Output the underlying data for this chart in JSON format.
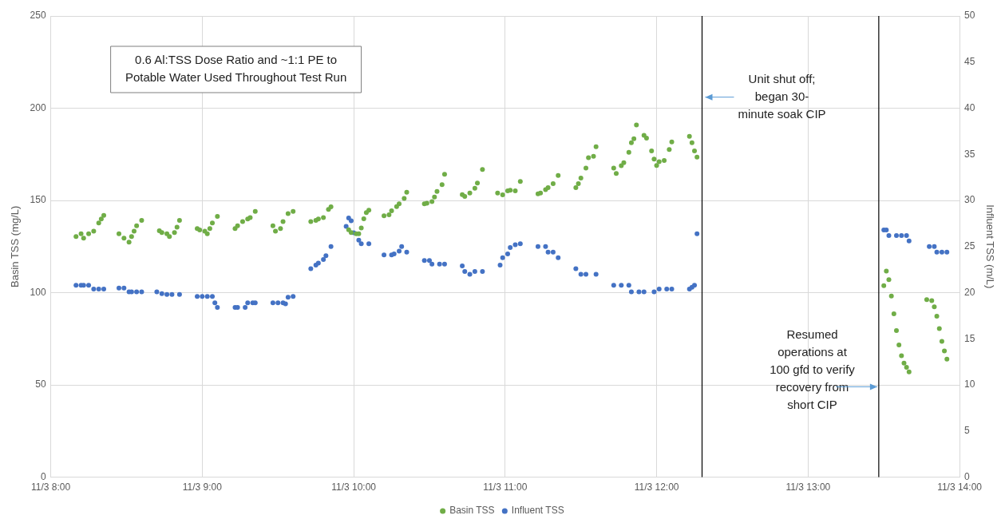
{
  "chart_data": {
    "type": "scatter",
    "ylabel": "Basin TSS (mg/L)",
    "y2label": "Influent TSS (m/L)",
    "xlim": [
      "--11-03T08:00",
      "--11-03T14:00"
    ],
    "xticks": [
      {
        "value": "--11-03T08:00",
        "label": "11/3 8:00"
      },
      {
        "value": "--11-03T09:00",
        "label": "11/3 9:00"
      },
      {
        "value": "--11-03T10:00",
        "label": "11/3 10:00"
      },
      {
        "value": "--11-03T11:00",
        "label": "11/3 11:00"
      },
      {
        "value": "--11-03T12:00",
        "label": "11/3 12:00"
      },
      {
        "value": "--11-03T13:00",
        "label": "11/3 13:00"
      },
      {
        "value": "--11-03T14:00",
        "label": "11/3 14:00"
      }
    ],
    "ylim": [
      0,
      250
    ],
    "yticks": [
      0,
      50,
      100,
      150,
      200,
      250
    ],
    "y2lim": [
      0,
      50
    ],
    "y2ticks": [
      0,
      5,
      10,
      15,
      20,
      25,
      30,
      35,
      40,
      45,
      50
    ],
    "grid": true,
    "legend": "bottom",
    "marker": "circle",
    "series": [
      {
        "name": "Basin TSS",
        "color": "#70ad47",
        "x": [
          "--11-03T08:10",
          "--11-03T08:12",
          "--11-03T08:13",
          "--11-03T08:15",
          "--11-03T08:17",
          "--11-03T08:19",
          "--11-03T08:20",
          "--11-03T08:21",
          "--11-03T08:27",
          "--11-03T08:29",
          "--11-03T08:31",
          "--11-03T08:32",
          "--11-03T08:33",
          "--11-03T08:34",
          "--11-03T08:36",
          "--11-03T08:43",
          "--11-03T08:44",
          "--11-03T08:46",
          "--11-03T08:47",
          "--11-03T08:49",
          "--11-03T08:50",
          "--11-03T08:51",
          "--11-03T08:58",
          "--11-03T08:59",
          "--11-03T09:01",
          "--11-03T09:02",
          "--11-03T09:03",
          "--11-03T09:04",
          "--11-03T09:06",
          "--11-03T09:13",
          "--11-03T09:14",
          "--11-03T09:16",
          "--11-03T09:18",
          "--11-03T09:19",
          "--11-03T09:21",
          "--11-03T09:28",
          "--11-03T09:29",
          "--11-03T09:31",
          "--11-03T09:32",
          "--11-03T09:34",
          "--11-03T09:36",
          "--11-03T09:43",
          "--11-03T09:45",
          "--11-03T09:46",
          "--11-03T09:48",
          "--11-03T09:50",
          "--11-03T09:51",
          "--11-03T09:58",
          "--11-03T09:59",
          "--11-03T10:01",
          "--11-03T10:02",
          "--11-03T10:03",
          "--11-03T10:04",
          "--11-03T10:05",
          "--11-03T10:06",
          "--11-03T10:12",
          "--11-03T10:14",
          "--11-03T10:15",
          "--11-03T10:17",
          "--11-03T10:18",
          "--11-03T10:20",
          "--11-03T10:21",
          "--11-03T10:28",
          "--11-03T10:29",
          "--11-03T10:31",
          "--11-03T10:32",
          "--11-03T10:33",
          "--11-03T10:35",
          "--11-03T10:36",
          "--11-03T10:43",
          "--11-03T10:44",
          "--11-03T10:46",
          "--11-03T10:48",
          "--11-03T10:49",
          "--11-03T10:51",
          "--11-03T10:57",
          "--11-03T10:59",
          "--11-03T11:01",
          "--11-03T11:02",
          "--11-03T11:04",
          "--11-03T11:06",
          "--11-03T11:13",
          "--11-03T11:14",
          "--11-03T11:16",
          "--11-03T11:17",
          "--11-03T11:19",
          "--11-03T11:21",
          "--11-03T11:28",
          "--11-03T11:29",
          "--11-03T11:30",
          "--11-03T11:32",
          "--11-03T11:33",
          "--11-03T11:35",
          "--11-03T11:36",
          "--11-03T11:43",
          "--11-03T11:44",
          "--11-03T11:46",
          "--11-03T11:47",
          "--11-03T11:49",
          "--11-03T11:50",
          "--11-03T11:51",
          "--11-03T11:52",
          "--11-03T11:55",
          "--11-03T11:56",
          "--11-03T11:58",
          "--11-03T11:59",
          "--11-03T12:00",
          "--11-03T12:01",
          "--11-03T12:03",
          "--11-03T12:05",
          "--11-03T12:06",
          "--11-03T12:13",
          "--11-03T12:14",
          "--11-03T12:15",
          "--11-03T12:16",
          "--11-03T13:30",
          "--11-03T13:31",
          "--11-03T13:32",
          "--11-03T13:33",
          "--11-03T13:34",
          "--11-03T13:35",
          "--11-03T13:36",
          "--11-03T13:37",
          "--11-03T13:38",
          "--11-03T13:39",
          "--11-03T13:40",
          "--11-03T13:47",
          "--11-03T13:49",
          "--11-03T13:50",
          "--11-03T13:51",
          "--11-03T13:52",
          "--11-03T13:53",
          "--11-03T13:54",
          "--11-03T13:55"
        ],
        "values": [
          130.4,
          131.9,
          129.6,
          131.9,
          133.3,
          137.8,
          140,
          141.9,
          131.9,
          129.6,
          127.4,
          130.4,
          133.3,
          136.3,
          139.2,
          133.6,
          132.6,
          131.9,
          130.4,
          132.6,
          135.5,
          139.2,
          134.8,
          134,
          133.3,
          131.9,
          134.8,
          137.8,
          141.4,
          134.8,
          136.3,
          138.5,
          140,
          140.7,
          144.1,
          136.3,
          133.3,
          134.8,
          138.5,
          142.9,
          144.1,
          138.5,
          139.2,
          140,
          140.7,
          145.1,
          146.6,
          134.1,
          132.6,
          131.9,
          131.9,
          135.1,
          140.1,
          143.4,
          144.7,
          141.7,
          142.2,
          144.4,
          146.7,
          148.2,
          151.1,
          154.5,
          148.2,
          148.5,
          149.4,
          151.9,
          154.9,
          158.6,
          164.2,
          153.2,
          152.2,
          154,
          156.6,
          159.4,
          166.8,
          154,
          153,
          155.2,
          155.5,
          155.2,
          160.3,
          153.6,
          154,
          155.9,
          156.9,
          159.1,
          163.5,
          156.9,
          159.1,
          162.1,
          167.6,
          173.2,
          173.9,
          179.1,
          167.6,
          164.6,
          168.8,
          170.5,
          176.1,
          181.3,
          183.5,
          190.9,
          185.3,
          183.8,
          176.9,
          172.4,
          169,
          171,
          171.7,
          177.6,
          181.7,
          184.7,
          181.3,
          176.9,
          173.5,
          103.8,
          111.7,
          107.1,
          98.2,
          88.6,
          79.5,
          71.7,
          65.8,
          61.8,
          59.6,
          57.1,
          96.2,
          95.7,
          92.3,
          87.3,
          80.5,
          73.6,
          68.4,
          64
        ]
      },
      {
        "name": "Influent TSS",
        "color": "#4472c4",
        "axis": "y2",
        "x": [
          "--11-03T08:10",
          "--11-03T08:12",
          "--11-03T08:13",
          "--11-03T08:15",
          "--11-03T08:17",
          "--11-03T08:19",
          "--11-03T08:21",
          "--11-03T08:27",
          "--11-03T08:29",
          "--11-03T08:31",
          "--11-03T08:32",
          "--11-03T08:34",
          "--11-03T08:36",
          "--11-03T08:42",
          "--11-03T08:44",
          "--11-03T08:46",
          "--11-03T08:48",
          "--11-03T08:51",
          "--11-03T08:58",
          "--11-03T09:00",
          "--11-03T09:02",
          "--11-03T09:04",
          "--11-03T09:05",
          "--11-03T09:06",
          "--11-03T09:13",
          "--11-03T09:14",
          "--11-03T09:17",
          "--11-03T09:18",
          "--11-03T09:20",
          "--11-03T09:21",
          "--11-03T09:28",
          "--11-03T09:30",
          "--11-03T09:32",
          "--11-03T09:33",
          "--11-03T09:34",
          "--11-03T09:36",
          "--11-03T09:43",
          "--11-03T09:45",
          "--11-03T09:46",
          "--11-03T09:48",
          "--11-03T09:49",
          "--11-03T09:51",
          "--11-03T09:57",
          "--11-03T09:58",
          "--11-03T09:59",
          "--11-03T10:00",
          "--11-03T10:02",
          "--11-03T10:03",
          "--11-03T10:06",
          "--11-03T10:12",
          "--11-03T10:15",
          "--11-03T10:16",
          "--11-03T10:18",
          "--11-03T10:19",
          "--11-03T10:21",
          "--11-03T10:28",
          "--11-03T10:30",
          "--11-03T10:31",
          "--11-03T10:34",
          "--11-03T10:36",
          "--11-03T10:43",
          "--11-03T10:44",
          "--11-03T10:46",
          "--11-03T10:48",
          "--11-03T10:51",
          "--11-03T10:58",
          "--11-03T10:59",
          "--11-03T11:01",
          "--11-03T11:02",
          "--11-03T11:04",
          "--11-03T11:06",
          "--11-03T11:13",
          "--11-03T11:16",
          "--11-03T11:17",
          "--11-03T11:19",
          "--11-03T11:21",
          "--11-03T11:28",
          "--11-03T11:30",
          "--11-03T11:32",
          "--11-03T11:36",
          "--11-03T11:43",
          "--11-03T11:46",
          "--11-03T11:49",
          "--11-03T11:50",
          "--11-03T11:53",
          "--11-03T11:55",
          "--11-03T11:59",
          "--11-03T12:01",
          "--11-03T12:04",
          "--11-03T12:06",
          "--11-03T12:13",
          "--11-03T12:14",
          "--11-03T12:15",
          "--11-03T12:16",
          "--11-03T13:30",
          "--11-03T13:31",
          "--11-03T13:32",
          "--11-03T13:35",
          "--11-03T13:37",
          "--11-03T13:39",
          "--11-03T13:40",
          "--11-03T13:48",
          "--11-03T13:50",
          "--11-03T13:51",
          "--11-03T13:53",
          "--11-03T13:55"
        ],
        "values": [
          20.8,
          20.8,
          20.8,
          20.8,
          20.4,
          20.4,
          20.4,
          20.5,
          20.5,
          20.1,
          20.1,
          20.1,
          20.1,
          20.1,
          19.9,
          19.8,
          19.8,
          19.8,
          19.6,
          19.6,
          19.6,
          19.6,
          18.9,
          18.4,
          18.4,
          18.4,
          18.4,
          18.9,
          18.9,
          18.9,
          18.9,
          18.9,
          18.9,
          18.8,
          19.5,
          19.6,
          22.6,
          23,
          23.2,
          23.6,
          24,
          25,
          27.2,
          28.1,
          27.8,
          26.5,
          25.7,
          25.3,
          25.3,
          24.1,
          24.1,
          24.2,
          24.5,
          25,
          24.4,
          23.5,
          23.5,
          23.1,
          23.1,
          23.1,
          22.9,
          22.3,
          22,
          22.3,
          22.3,
          23,
          23.8,
          24.2,
          24.9,
          25.2,
          25.3,
          25,
          25,
          24.4,
          24.4,
          23.8,
          22.6,
          22,
          22,
          22,
          20.8,
          20.8,
          20.8,
          20.1,
          20.1,
          20.1,
          20.1,
          20.4,
          20.4,
          20.4,
          20.4,
          20.6,
          20.8,
          26.4,
          26.8,
          26.8,
          26.2,
          26.2,
          26.2,
          26.2,
          25.6,
          25,
          25,
          24.4,
          24.4,
          24.4
        ]
      }
    ],
    "ref_lines": [
      {
        "axis": "x",
        "value": "--11-03T12:18",
        "color": "#000000"
      },
      {
        "axis": "x",
        "value": "--11-03T13:28",
        "color": "#000000"
      }
    ],
    "annotations": [
      "0.6 Al:TSS Dose Ratio and ~1:1 PE to\nPotable Water Used Throughout Test Run",
      {
        "text": "Unit shut off;\nbegan 30-\nminute soak CIP",
        "x": "--11-03T12:18",
        "y": 206
      },
      {
        "text": "Resumed\noperations at\n100 gfd to verify\nrecovery from\nshort CIP",
        "x": "--11-03T13:28",
        "y": 49
      }
    ]
  }
}
